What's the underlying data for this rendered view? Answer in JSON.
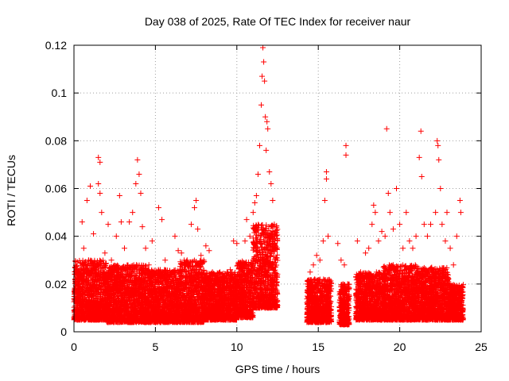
{
  "colors": {
    "series": "#ff0000",
    "axis": "#000000",
    "grid": "#a0a0a0"
  },
  "chart_data": {
    "type": "scatter",
    "title": "Day 038 of 2025, Rate Of TEC Index for receiver naur",
    "xlabel": "GPS time / hours",
    "ylabel": "ROTI / TECUs",
    "xlim": [
      0,
      25
    ],
    "ylim": [
      0,
      0.12
    ],
    "xticks": [
      0,
      5,
      10,
      15,
      20,
      25
    ],
    "yticks": [
      0,
      0.02,
      0.04,
      0.06,
      0.08,
      0.1,
      0.12
    ],
    "grid": true,
    "marker": "plus",
    "series": [
      {
        "values": [
          [
            0.2,
            0.012
          ],
          [
            0.3,
            0.018
          ],
          [
            0.4,
            0.024
          ],
          [
            0.5,
            0.046
          ],
          [
            0.6,
            0.035
          ],
          [
            0.8,
            0.055
          ],
          [
            0.9,
            0.03
          ],
          [
            1.0,
            0.061
          ],
          [
            1.2,
            0.041
          ],
          [
            1.5,
            0.073
          ],
          [
            1.6,
            0.071
          ],
          [
            1.5,
            0.062
          ],
          [
            1.6,
            0.058
          ],
          [
            1.7,
            0.05
          ],
          [
            1.9,
            0.033
          ],
          [
            2.1,
            0.045
          ],
          [
            2.3,
            0.03
          ],
          [
            2.6,
            0.04
          ],
          [
            2.8,
            0.057
          ],
          [
            2.9,
            0.046
          ],
          [
            3.1,
            0.035
          ],
          [
            3.4,
            0.046
          ],
          [
            3.6,
            0.05
          ],
          [
            3.8,
            0.062
          ],
          [
            3.9,
            0.072
          ],
          [
            4.0,
            0.066
          ],
          [
            4.1,
            0.058
          ],
          [
            4.2,
            0.044
          ],
          [
            4.4,
            0.035
          ],
          [
            4.6,
            0.028
          ],
          [
            4.8,
            0.038
          ],
          [
            5.2,
            0.052
          ],
          [
            5.4,
            0.047
          ],
          [
            5.6,
            0.03
          ],
          [
            5.9,
            0.025
          ],
          [
            6.2,
            0.04
          ],
          [
            6.4,
            0.034
          ],
          [
            6.6,
            0.033
          ],
          [
            6.9,
            0.025
          ],
          [
            7.2,
            0.045
          ],
          [
            7.4,
            0.052
          ],
          [
            7.5,
            0.055
          ],
          [
            7.6,
            0.043
          ],
          [
            7.8,
            0.032
          ],
          [
            8.1,
            0.036
          ],
          [
            8.3,
            0.034
          ],
          [
            8.5,
            0.025
          ],
          [
            8.8,
            0.022
          ],
          [
            9.1,
            0.024
          ],
          [
            9.4,
            0.025
          ],
          [
            9.6,
            0.026
          ],
          [
            9.8,
            0.038
          ],
          [
            10.0,
            0.037
          ],
          [
            10.2,
            0.028
          ],
          [
            10.5,
            0.038
          ],
          [
            10.6,
            0.047
          ],
          [
            10.8,
            0.04
          ],
          [
            11.0,
            0.05
          ],
          [
            11.1,
            0.054
          ],
          [
            11.2,
            0.057
          ],
          [
            11.3,
            0.066
          ],
          [
            11.4,
            0.078
          ],
          [
            11.5,
            0.095
          ],
          [
            11.55,
            0.107
          ],
          [
            11.6,
            0.119
          ],
          [
            11.65,
            0.113
          ],
          [
            11.7,
            0.105
          ],
          [
            11.75,
            0.09
          ],
          [
            11.8,
            0.076
          ],
          [
            11.85,
            0.088
          ],
          [
            11.9,
            0.085
          ],
          [
            12.0,
            0.067
          ],
          [
            12.1,
            0.062
          ],
          [
            12.2,
            0.055
          ],
          [
            12.3,
            0.045
          ],
          [
            12.4,
            0.035
          ],
          [
            14.5,
            0.025
          ],
          [
            14.7,
            0.028
          ],
          [
            14.9,
            0.032
          ],
          [
            15.1,
            0.03
          ],
          [
            15.3,
            0.038
          ],
          [
            15.4,
            0.055
          ],
          [
            15.5,
            0.067
          ],
          [
            15.5,
            0.064
          ],
          [
            15.6,
            0.04
          ],
          [
            15.8,
            0.018
          ],
          [
            16.2,
            0.037
          ],
          [
            16.4,
            0.03
          ],
          [
            16.6,
            0.028
          ],
          [
            16.7,
            0.078
          ],
          [
            16.7,
            0.074
          ],
          [
            16.8,
            0.02
          ],
          [
            17.4,
            0.038
          ],
          [
            17.6,
            0.025
          ],
          [
            17.9,
            0.033
          ],
          [
            18.1,
            0.035
          ],
          [
            18.3,
            0.045
          ],
          [
            18.4,
            0.053
          ],
          [
            18.5,
            0.05
          ],
          [
            18.7,
            0.038
          ],
          [
            18.9,
            0.042
          ],
          [
            19.1,
            0.04
          ],
          [
            19.2,
            0.085
          ],
          [
            19.3,
            0.058
          ],
          [
            19.4,
            0.05
          ],
          [
            19.6,
            0.043
          ],
          [
            19.8,
            0.06
          ],
          [
            20.0,
            0.045
          ],
          [
            20.2,
            0.035
          ],
          [
            20.4,
            0.05
          ],
          [
            20.6,
            0.038
          ],
          [
            20.8,
            0.035
          ],
          [
            21.0,
            0.04
          ],
          [
            21.2,
            0.073
          ],
          [
            21.3,
            0.084
          ],
          [
            21.35,
            0.065
          ],
          [
            21.5,
            0.045
          ],
          [
            21.7,
            0.04
          ],
          [
            21.9,
            0.045
          ],
          [
            22.2,
            0.05
          ],
          [
            22.3,
            0.08
          ],
          [
            22.35,
            0.078
          ],
          [
            22.4,
            0.072
          ],
          [
            22.5,
            0.06
          ],
          [
            22.6,
            0.045
          ],
          [
            22.8,
            0.038
          ],
          [
            22.9,
            0.05
          ],
          [
            23.1,
            0.035
          ],
          [
            23.3,
            0.028
          ],
          [
            23.5,
            0.04
          ],
          [
            23.7,
            0.055
          ],
          [
            23.75,
            0.05
          ]
        ]
      }
    ],
    "density": {
      "note": "dense band of points; segments [start_hour, end_hour, y_min, y_max]",
      "bands": [
        [
          0.0,
          2.0,
          0.005,
          0.03
        ],
        [
          2.0,
          4.5,
          0.004,
          0.028
        ],
        [
          4.5,
          6.5,
          0.004,
          0.026
        ],
        [
          6.5,
          8.0,
          0.004,
          0.03
        ],
        [
          8.0,
          10.0,
          0.005,
          0.025
        ],
        [
          10.0,
          11.0,
          0.006,
          0.03
        ],
        [
          11.0,
          12.5,
          0.01,
          0.045
        ],
        [
          14.3,
          15.8,
          0.004,
          0.022
        ],
        [
          16.3,
          16.9,
          0.003,
          0.02
        ],
        [
          17.3,
          19.0,
          0.005,
          0.025
        ],
        [
          19.0,
          21.0,
          0.005,
          0.028
        ],
        [
          21.0,
          23.0,
          0.005,
          0.027
        ],
        [
          23.0,
          23.9,
          0.005,
          0.02
        ]
      ],
      "samples_per_hour": 520
    }
  }
}
